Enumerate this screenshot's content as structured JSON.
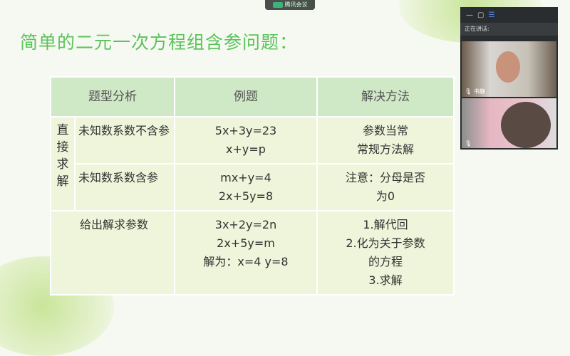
{
  "app_badge": "腾讯会议",
  "slide": {
    "title": "简单的二元一次方程组含参问题：",
    "headers": [
      "题型分析",
      "例题",
      "解决方法"
    ],
    "group_label": "直接求解",
    "rows": [
      {
        "type": "未知数系数不含参",
        "example": [
          "5x+3y=23",
          "x+y=p"
        ],
        "method": [
          "参数当常",
          "常规方法解"
        ]
      },
      {
        "type": "未知数系数含参",
        "example": [
          "mx+y=4",
          "2x+5y=8"
        ],
        "method": [
          "注意：分母是否",
          "为0"
        ]
      },
      {
        "type": "给出解求参数",
        "example": [
          "3x+2y=2n",
          "2x+5y=m",
          "解为：x=4  y=8"
        ],
        "method": [
          "1.解代回",
          "2.化为关于参数",
          "的方程",
          "3.求解"
        ]
      }
    ]
  },
  "meeting": {
    "speaking_label": "正在讲话:",
    "participant1": "书静"
  }
}
